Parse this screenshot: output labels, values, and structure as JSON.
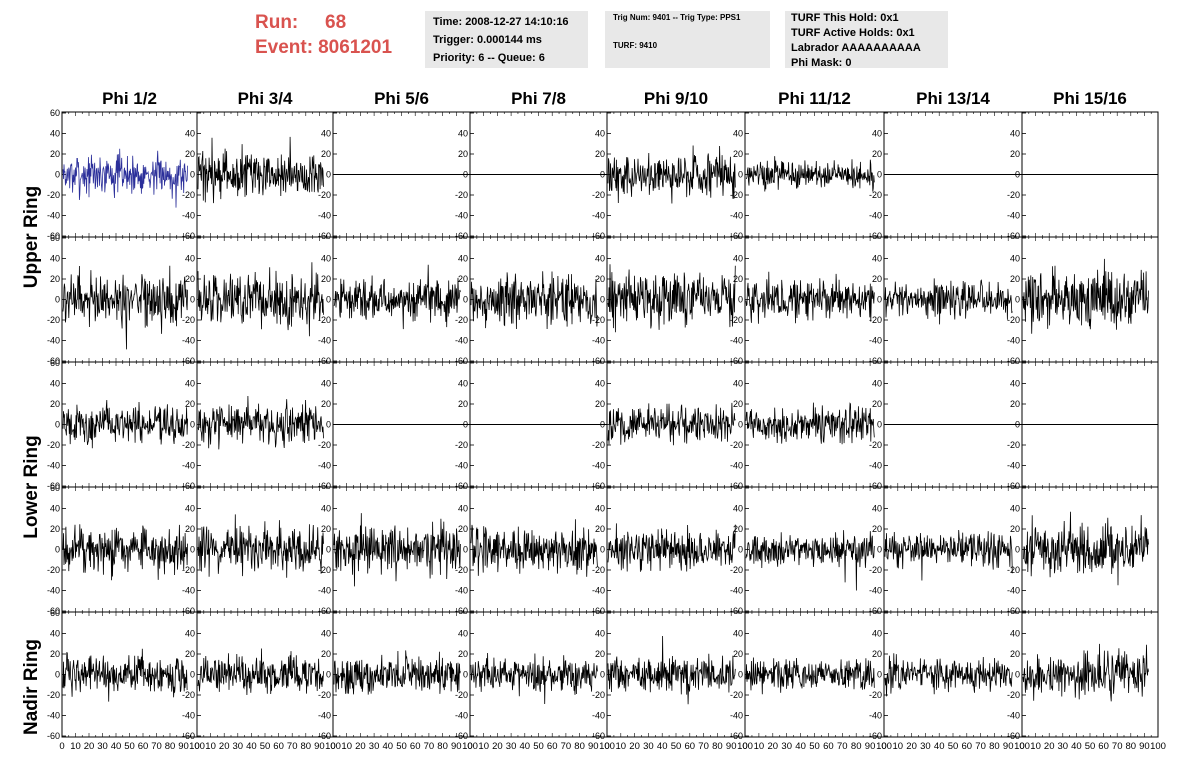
{
  "header": {
    "run_label": "Run:",
    "run_value": "68",
    "event_label": "Event:",
    "event_value": "8061201",
    "box1": [
      "Time: 2008-12-27 14:10:16",
      "Trigger: 0.000144 ms",
      "Priority: 6 -- Queue: 6"
    ],
    "box2": [
      "Trig Num: 9401 -- Trig Type: PPS1",
      "TURF: 9410"
    ],
    "box3": [
      "TURF This Hold: 0x1",
      "TURF Active Holds: 0x1",
      "Labrador AAAAAAAAAA",
      "Phi Mask: 0"
    ]
  },
  "colors": {
    "run_text": "#d9534f",
    "info_bg": "#e8e8e8",
    "trace": "#000000",
    "highlight_trace": "#2b2f9a"
  },
  "chart_data": {
    "type": "line",
    "columns": [
      "Phi 1/2",
      "Phi 3/4",
      "Phi 5/6",
      "Phi 7/8",
      "Phi 9/10",
      "Phi 11/12",
      "Phi 13/14",
      "Phi 15/16"
    ],
    "row_groups": [
      "Upper Ring",
      "Lower Ring",
      "Nadir Ring"
    ],
    "rows": 5,
    "ylim": [
      -60,
      60
    ],
    "xlim": [
      0,
      100
    ],
    "yticks": [
      60,
      40,
      20,
      0,
      -20,
      -40,
      -60
    ],
    "xticks": [
      0,
      10,
      20,
      30,
      40,
      50,
      60,
      70,
      80,
      90,
      100
    ],
    "highlight": {
      "row": 0,
      "col": 0
    },
    "panels": [
      [
        {
          "amp": 17,
          "flat": false
        },
        {
          "amp": 20,
          "flat": false
        },
        {
          "amp": 0,
          "flat": true
        },
        {
          "amp": 0,
          "flat": true
        },
        {
          "amp": 20,
          "flat": false
        },
        {
          "amp": 12,
          "flat": false
        },
        {
          "amp": 0,
          "flat": true
        },
        {
          "amp": 0,
          "flat": true
        }
      ],
      [
        {
          "amp": 22,
          "flat": false
        },
        {
          "amp": 22,
          "flat": false
        },
        {
          "amp": 18,
          "flat": false
        },
        {
          "amp": 22,
          "flat": false
        },
        {
          "amp": 22,
          "flat": false
        },
        {
          "amp": 18,
          "flat": false
        },
        {
          "amp": 16,
          "flat": false
        },
        {
          "amp": 24,
          "flat": false
        }
      ],
      [
        {
          "amp": 16,
          "flat": false
        },
        {
          "amp": 18,
          "flat": false
        },
        {
          "amp": 0,
          "flat": true
        },
        {
          "amp": 0,
          "flat": true
        },
        {
          "amp": 16,
          "flat": false
        },
        {
          "amp": 16,
          "flat": false
        },
        {
          "amp": 0,
          "flat": true
        },
        {
          "amp": 0,
          "flat": true
        }
      ],
      [
        {
          "amp": 20,
          "flat": false
        },
        {
          "amp": 20,
          "flat": false
        },
        {
          "amp": 20,
          "flat": false
        },
        {
          "amp": 20,
          "flat": false
        },
        {
          "amp": 18,
          "flat": false
        },
        {
          "amp": 14,
          "flat": false
        },
        {
          "amp": 14,
          "flat": false
        },
        {
          "amp": 22,
          "flat": false
        }
      ],
      [
        {
          "amp": 16,
          "flat": false
        },
        {
          "amp": 16,
          "flat": false
        },
        {
          "amp": 16,
          "flat": false
        },
        {
          "amp": 16,
          "flat": false
        },
        {
          "amp": 16,
          "flat": false
        },
        {
          "amp": 14,
          "flat": false
        },
        {
          "amp": 14,
          "flat": false
        },
        {
          "amp": 18,
          "flat": false
        }
      ]
    ]
  }
}
